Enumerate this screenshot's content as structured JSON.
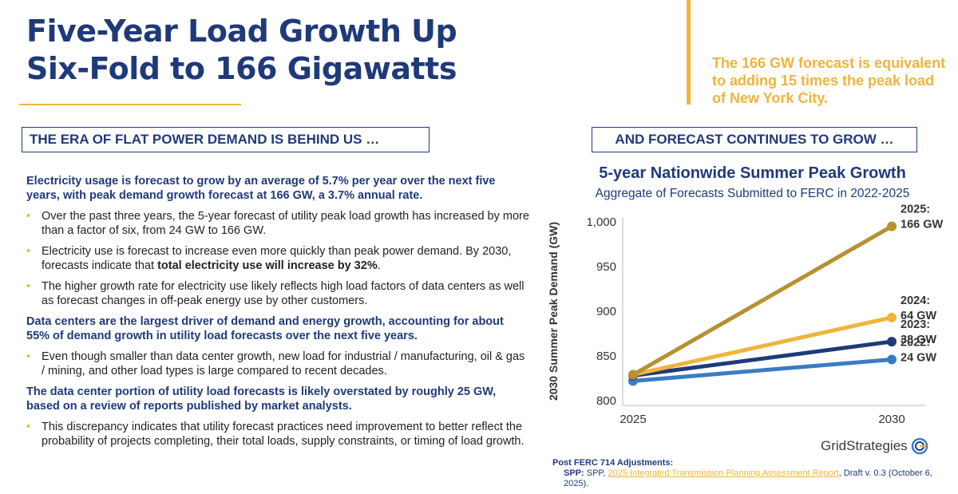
{
  "header": {
    "title_line1": "Five-Year Load Growth Up",
    "title_line2": "Six-Fold to 166 Gigawatts"
  },
  "callout": {
    "text": "The 166 GW forecast is equivalent to adding 15 times the peak load of New York City."
  },
  "left": {
    "section_title": "THE ERA OF FLAT POWER DEMAND IS BEHIND US …",
    "groups": [
      {
        "lead": "Electricity usage is forecast to grow by an average of 5.7% per year over the next five years, with peak demand growth forecast at 166 GW, a 3.7% annual rate.",
        "bullets": [
          {
            "text": "Over the past three years, the 5-year forecast of utility peak load growth has increased by more than a factor of six, from 24 GW to 166 GW."
          },
          {
            "pre": "Electricity use is forecast to increase even more quickly than peak power demand. By 2030, forecasts indicate that ",
            "bold": "total electricity use will increase by 32%",
            "post": "."
          },
          {
            "text": "The higher growth rate for electricity use likely reflects high load factors of data centers as well as forecast changes in off-peak energy use by other customers."
          }
        ]
      },
      {
        "lead": "Data centers are the largest driver of demand and energy growth, accounting for about 55% of demand growth in utility load forecasts over the next five years.",
        "bullets": [
          {
            "text": "Even though smaller than data center growth, new load for industrial / manufacturing, oil & gas / mining, and other load types is large compared to recent decades."
          }
        ]
      },
      {
        "lead": "The data center portion of utility load forecasts is likely overstated by roughly 25 GW, based on a review of reports published by market analysts.",
        "bullets": [
          {
            "text": "This discrepancy indicates that utility forecast practices need improvement to better reflect the probability of projects completing, their total loads, supply constraints, or timing of load growth."
          }
        ]
      }
    ]
  },
  "right": {
    "section_title": "AND FORECAST CONTINUES TO GROW …"
  },
  "chart_data": {
    "type": "line",
    "title": "5-year Nationwide Summer Peak Growth",
    "subtitle": "Aggregate of Forecasts Submitted to FERC in 2022-2025",
    "ylabel": "2030 Summer Peak Demand (GW)",
    "xlabel": "",
    "x": [
      "2025",
      "2030"
    ],
    "ylim": [
      800,
      1000
    ],
    "yticks": [
      800,
      850,
      900,
      950,
      1000
    ],
    "ytick_labels": [
      "800",
      "850",
      "900",
      "950",
      "1,000"
    ],
    "grid": false,
    "series": [
      {
        "label_line1": "2025:",
        "label_line2": "166 GW",
        "color": "#b8902f",
        "values": [
          829,
          995
        ]
      },
      {
        "label_line1": "2024:",
        "label_line2": "64 GW",
        "color": "#f0b43c",
        "values": [
          829,
          893
        ]
      },
      {
        "label_line1": "2023:",
        "label_line2": "38 GW",
        "color": "#1f3a7a",
        "values": [
          828,
          866
        ]
      },
      {
        "label_line1": "2022:",
        "label_line2": "24 GW",
        "color": "#3a7cc4",
        "values": [
          822,
          846
        ]
      }
    ]
  },
  "logo": {
    "text": "GridStrategies"
  },
  "footnote": {
    "heading": "Post FERC 714 Adjustments:",
    "prefix": "SPP:",
    "mid": " SPP, ",
    "link": "2025 Integrated Transmission Planning Assessment Report",
    "suffix": ", Draft v. 0.3 (October 6, 2025)."
  },
  "colors": {
    "navy": "#1f3a7a",
    "gold": "#f0b43c"
  }
}
